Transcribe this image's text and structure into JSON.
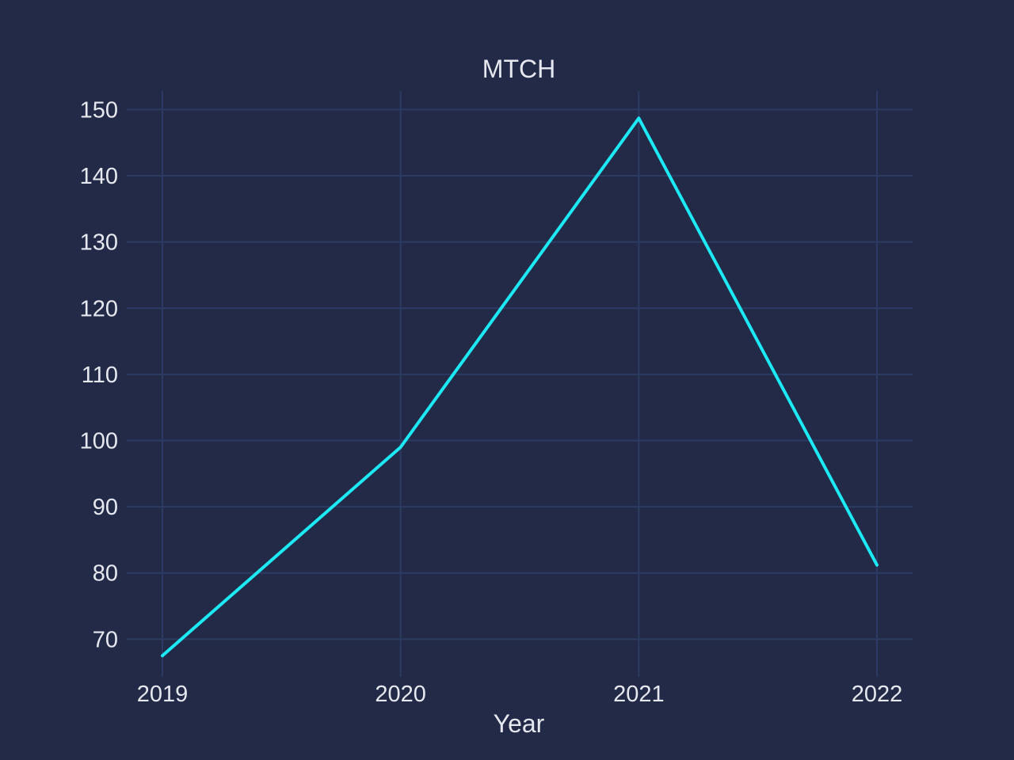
{
  "chart_data": {
    "type": "line",
    "title": "MTCH",
    "xlabel": "Year",
    "ylabel": "",
    "x": [
      "2019",
      "2020",
      "2021",
      "2022"
    ],
    "series": [
      {
        "values": [
          67.5,
          99.0,
          148.7,
          81.2
        ]
      }
    ],
    "yticks": [
      70,
      80,
      90,
      100,
      110,
      120,
      130,
      140,
      150
    ],
    "ylim": [
      64.3,
      152.8
    ],
    "grid": true,
    "legend": "none",
    "colors": {
      "background": "#222a47",
      "grid": "#2d3a62",
      "text": "#e6e8ef",
      "line": "#1de9f5"
    }
  }
}
